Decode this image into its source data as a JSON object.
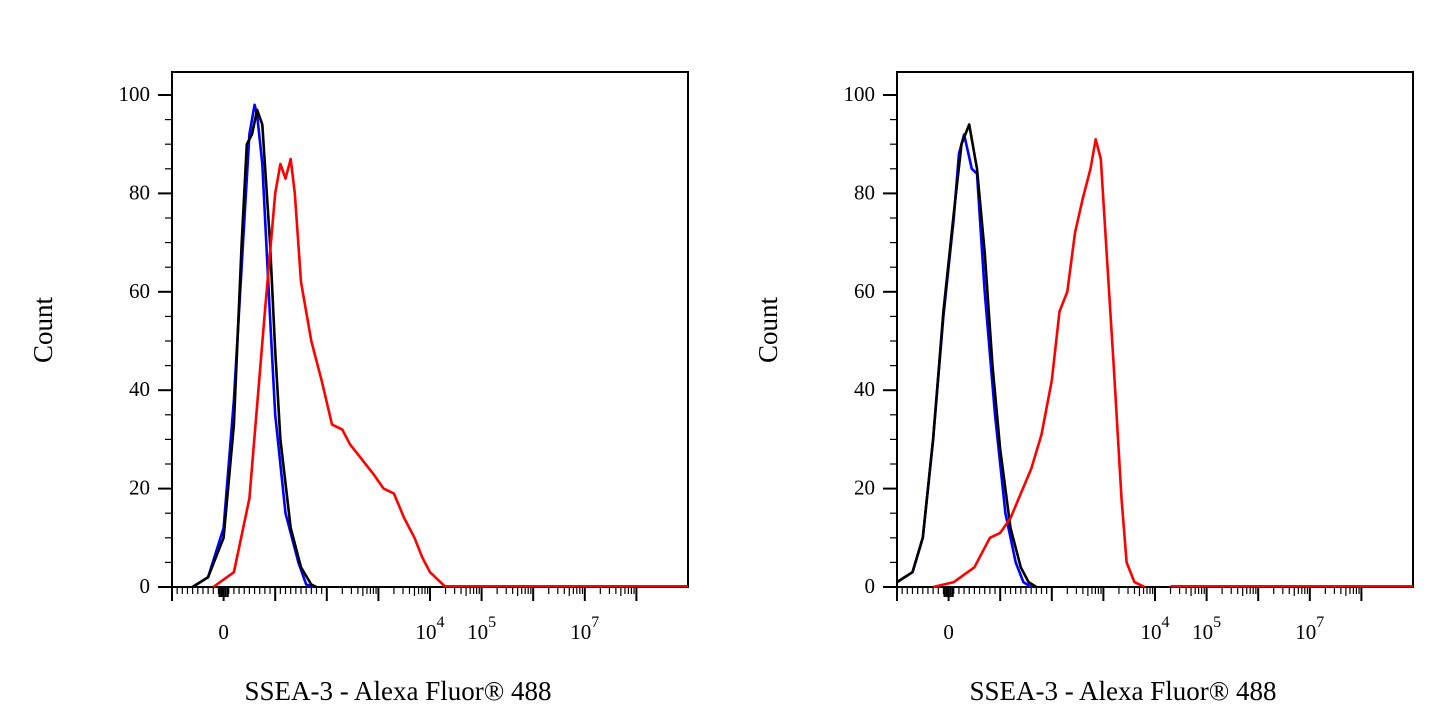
{
  "chart_data": [
    {
      "type": "line",
      "title": "",
      "xlabel": "SSEA-3 - Alexa Fluor® 488",
      "ylabel": "Count",
      "ylim": [
        0,
        100
      ],
      "xlim": [
        -1,
        9
      ],
      "x_scale": "biexponential (log above 10^3)",
      "grid": false,
      "legend": "none",
      "y_ticks": [
        0,
        20,
        40,
        60,
        80,
        100
      ],
      "y_tick_labels": [
        "0",
        "20",
        "40",
        "60",
        "80",
        "100"
      ],
      "x_tick_labels": [
        {
          "base": "0",
          "exp": "",
          "at": 0
        },
        {
          "base": "10",
          "exp": "4",
          "at": 4
        },
        {
          "base": "10",
          "exp": "5",
          "at": 5
        },
        {
          "base": "10",
          "exp": "7",
          "at": 7
        }
      ],
      "series": [
        {
          "color": "#0000ff",
          "points": [
            [
              -0.6,
              0
            ],
            [
              -0.3,
              2
            ],
            [
              0,
              12
            ],
            [
              0.2,
              38
            ],
            [
              0.4,
              74
            ],
            [
              0.5,
              92
            ],
            [
              0.6,
              98
            ],
            [
              0.65,
              96
            ],
            [
              0.75,
              86
            ],
            [
              0.9,
              55
            ],
            [
              1.0,
              35
            ],
            [
              1.2,
              15
            ],
            [
              1.45,
              5
            ],
            [
              1.6,
              0.5
            ],
            [
              1.75,
              0
            ]
          ]
        },
        {
          "color": "#000000",
          "points": [
            [
              -0.6,
              0
            ],
            [
              -0.3,
              2
            ],
            [
              0,
              10
            ],
            [
              0.2,
              33
            ],
            [
              0.35,
              70
            ],
            [
              0.45,
              90
            ],
            [
              0.55,
              92
            ],
            [
              0.65,
              97
            ],
            [
              0.75,
              94
            ],
            [
              0.9,
              70
            ],
            [
              1.0,
              48
            ],
            [
              1.1,
              30
            ],
            [
              1.3,
              12
            ],
            [
              1.5,
              4
            ],
            [
              1.7,
              0.5
            ],
            [
              1.8,
              0
            ]
          ]
        },
        {
          "color": "#ff0000",
          "points": [
            [
              -0.2,
              0
            ],
            [
              0.2,
              3
            ],
            [
              0.5,
              18
            ],
            [
              0.8,
              56
            ],
            [
              1.0,
              80
            ],
            [
              1.1,
              86
            ],
            [
              1.2,
              83
            ],
            [
              1.3,
              87
            ],
            [
              1.38,
              80
            ],
            [
              1.5,
              62
            ],
            [
              1.7,
              50
            ],
            [
              1.9,
              42
            ],
            [
              2.1,
              33
            ],
            [
              2.3,
              32
            ],
            [
              2.45,
              29
            ],
            [
              2.6,
              27
            ],
            [
              2.9,
              23
            ],
            [
              3.1,
              20
            ],
            [
              3.3,
              19
            ],
            [
              3.5,
              14
            ],
            [
              3.7,
              10
            ],
            [
              3.85,
              6
            ],
            [
              4.0,
              3
            ],
            [
              4.3,
              0
            ]
          ]
        }
      ]
    },
    {
      "type": "line",
      "title": "",
      "xlabel": "SSEA-3 - Alexa Fluor® 488",
      "ylabel": "Count",
      "ylim": [
        0,
        100
      ],
      "xlim": [
        -1,
        9
      ],
      "x_scale": "biexponential (log above 10^3)",
      "grid": false,
      "legend": "none",
      "y_ticks": [
        0,
        20,
        40,
        60,
        80,
        100
      ],
      "y_tick_labels": [
        "0",
        "20",
        "40",
        "60",
        "80",
        "100"
      ],
      "x_tick_labels": [
        {
          "base": "0",
          "exp": "",
          "at": 0
        },
        {
          "base": "10",
          "exp": "4",
          "at": 4
        },
        {
          "base": "10",
          "exp": "5",
          "at": 5
        },
        {
          "base": "10",
          "exp": "7",
          "at": 7
        }
      ],
      "series": [
        {
          "color": "#0000ff",
          "points": [
            [
              -1,
              1
            ],
            [
              -0.7,
              3
            ],
            [
              -0.5,
              10
            ],
            [
              -0.3,
              30
            ],
            [
              -0.1,
              55
            ],
            [
              0.1,
              75
            ],
            [
              0.2,
              88
            ],
            [
              0.3,
              92
            ],
            [
              0.45,
              85
            ],
            [
              0.55,
              84
            ],
            [
              0.7,
              60
            ],
            [
              0.9,
              35
            ],
            [
              1.1,
              15
            ],
            [
              1.3,
              5
            ],
            [
              1.45,
              1
            ],
            [
              1.6,
              0
            ]
          ]
        },
        {
          "color": "#000000",
          "points": [
            [
              -1,
              1
            ],
            [
              -0.7,
              3
            ],
            [
              -0.5,
              10
            ],
            [
              -0.3,
              30
            ],
            [
              -0.1,
              56
            ],
            [
              0.1,
              76
            ],
            [
              0.25,
              90
            ],
            [
              0.4,
              94
            ],
            [
              0.55,
              85
            ],
            [
              0.7,
              68
            ],
            [
              0.85,
              45
            ],
            [
              1.0,
              28
            ],
            [
              1.2,
              12
            ],
            [
              1.4,
              4
            ],
            [
              1.55,
              1
            ],
            [
              1.7,
              0
            ]
          ]
        },
        {
          "color": "#ff0000",
          "points": [
            [
              -0.3,
              0
            ],
            [
              0.1,
              1
            ],
            [
              0.5,
              4
            ],
            [
              0.8,
              10
            ],
            [
              1.0,
              11
            ],
            [
              1.2,
              14
            ],
            [
              1.4,
              19
            ],
            [
              1.6,
              24
            ],
            [
              1.8,
              31
            ],
            [
              2.0,
              42
            ],
            [
              2.15,
              56
            ],
            [
              2.3,
              60
            ],
            [
              2.45,
              72
            ],
            [
              2.6,
              79
            ],
            [
              2.75,
              85
            ],
            [
              2.85,
              91
            ],
            [
              2.95,
              87
            ],
            [
              3.05,
              70
            ],
            [
              3.2,
              45
            ],
            [
              3.35,
              18
            ],
            [
              3.45,
              5
            ],
            [
              3.6,
              1
            ],
            [
              3.8,
              0
            ]
          ]
        }
      ]
    }
  ]
}
